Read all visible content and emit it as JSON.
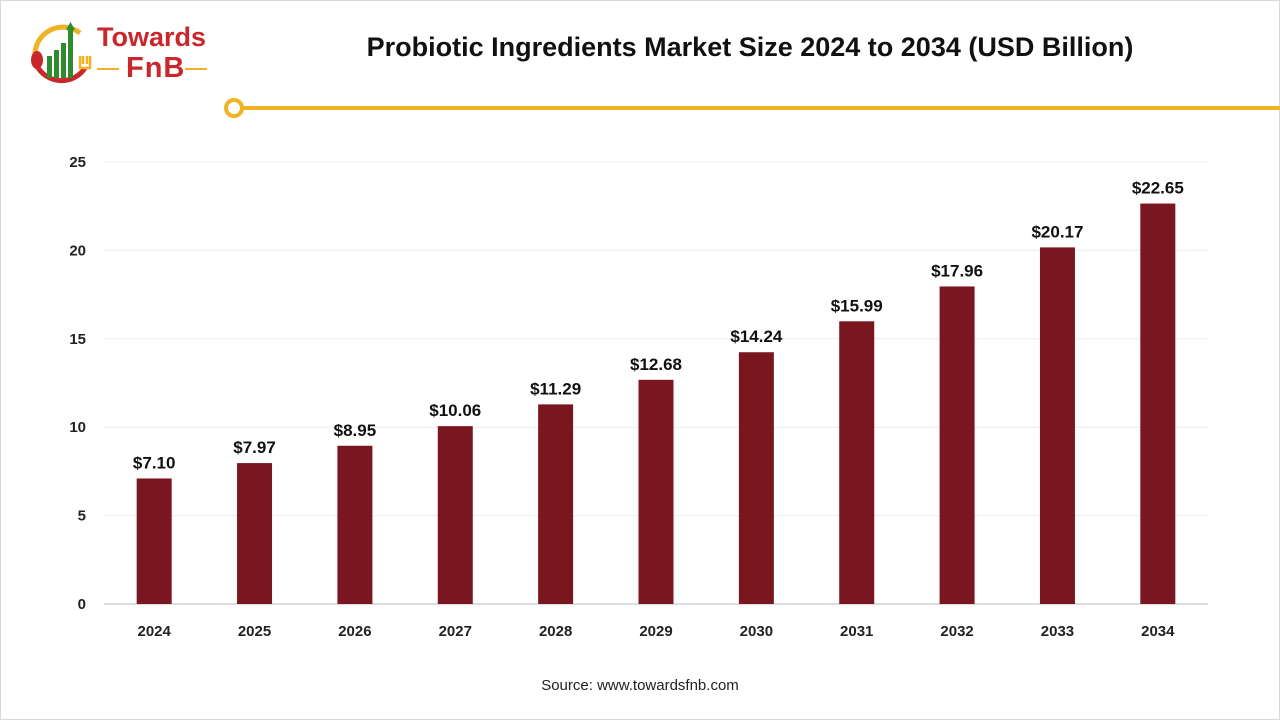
{
  "logo": {
    "line1": "Towards",
    "line2": "FnB"
  },
  "colors": {
    "bar": "#7a1620",
    "accent": "#f0b323",
    "logo_red": "#c8282b",
    "logo_green": "#2e8b2e"
  },
  "source": "Source: www.towardsfnb.com",
  "chart_data": {
    "type": "bar",
    "title": "Probiotic Ingredients Market Size 2024 to 2034 (USD Billion)",
    "categories": [
      "2024",
      "2025",
      "2026",
      "2027",
      "2028",
      "2029",
      "2030",
      "2031",
      "2032",
      "2033",
      "2034"
    ],
    "values": [
      7.1,
      7.97,
      8.95,
      10.06,
      11.29,
      12.68,
      14.24,
      15.99,
      17.96,
      20.17,
      22.65
    ],
    "data_labels": [
      "$7.10",
      "$7.97",
      "$8.95",
      "$10.06",
      "$11.29",
      "$12.68",
      "$14.24",
      "$15.99",
      "$17.96",
      "$20.17",
      "$22.65"
    ],
    "yticks": [
      0,
      5,
      10,
      15,
      20,
      25
    ],
    "ylim": [
      0,
      25
    ],
    "grid": true,
    "xlabel": "",
    "ylabel": ""
  }
}
